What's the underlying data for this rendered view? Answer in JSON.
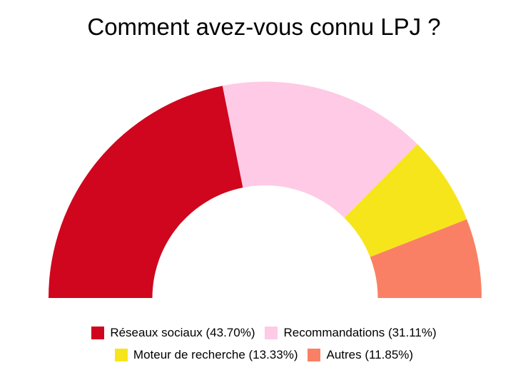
{
  "chart_data": {
    "type": "pie",
    "variant": "half-donut",
    "title": "Comment avez-vous connu LPJ ?",
    "categories": [
      "Réseaux sociaux",
      "Recommandations",
      "Moteur de recherche",
      "Autres"
    ],
    "values": [
      43.7,
      31.11,
      13.33,
      11.85
    ],
    "unit": "%",
    "colors": [
      "#cf061e",
      "#fecae6",
      "#f7e51c",
      "#fa8065"
    ],
    "legend_position": "bottom",
    "legend": [
      {
        "label": "Réseaux sociaux (43.70%)",
        "color": "#cf061e"
      },
      {
        "label": "Recommandations (31.11%)",
        "color": "#fecae6"
      },
      {
        "label": "Moteur de recherche (13.33%)",
        "color": "#f7e51c"
      },
      {
        "label": "Autres (11.85%)",
        "color": "#fa8065"
      }
    ]
  }
}
